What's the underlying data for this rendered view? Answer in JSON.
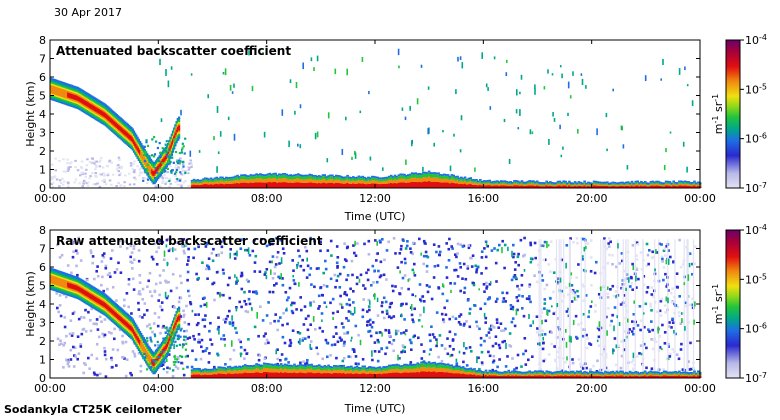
{
  "date_label": "30 Apr 2017",
  "footer_label": "Sodankyla CT25K ceilometer",
  "colors": {
    "colormap": [
      "#e3e3f3",
      "#b8b8e8",
      "#2a2acf",
      "#1e6ee6",
      "#00a88a",
      "#22c43b",
      "#8fd81a",
      "#f0e010",
      "#f08a10",
      "#e01010",
      "#a8003a",
      "#6a006a"
    ]
  },
  "chart_data": [
    {
      "type": "heatmap",
      "title": "Attenuated backscatter coefficient",
      "xlabel": "Time (UTC)",
      "ylabel": "Height (km)",
      "x_ticks": [
        "00:00",
        "04:00",
        "08:00",
        "12:00",
        "16:00",
        "20:00",
        "00:00"
      ],
      "y_ticks": [
        "0",
        "1",
        "2",
        "3",
        "4",
        "5",
        "6",
        "7",
        "8"
      ],
      "xlim_hours": [
        0,
        24
      ],
      "ylim_km": [
        0,
        8
      ],
      "colorbar": {
        "scale": "log",
        "range": [
          1e-07,
          0.0001
        ],
        "tick_labels": [
          "10^-7",
          "10^-6",
          "10^-5",
          "10^-4"
        ],
        "unit": "m^-1 sr^-1"
      },
      "features": {
        "descending_layer": [
          {
            "t": 0.0,
            "z": 5.3
          },
          {
            "t": 1.0,
            "z": 4.8
          },
          {
            "t": 2.0,
            "z": 3.9
          },
          {
            "t": 3.0,
            "z": 2.6
          },
          {
            "t": 3.6,
            "z": 1.1
          },
          {
            "t": 3.8,
            "z": 0.7
          },
          {
            "t": 4.3,
            "z": 1.7
          },
          {
            "t": 4.7,
            "z": 3.2
          }
        ],
        "boundary_layer_top_km": [
          {
            "t": 5.5,
            "z": 0.4
          },
          {
            "t": 8.0,
            "z": 0.7
          },
          {
            "t": 12.0,
            "z": 0.5
          },
          {
            "t": 14.0,
            "z": 0.8
          },
          {
            "t": 16.0,
            "z": 0.3
          },
          {
            "t": 20.0,
            "z": 0.25
          },
          {
            "t": 24.0,
            "z": 0.25
          }
        ],
        "sparse_clouds": true
      }
    },
    {
      "type": "heatmap",
      "title": "Raw attenuated backscatter coefficient",
      "xlabel": "Time (UTC)",
      "ylabel": "Height (km)",
      "x_ticks": [
        "00:00",
        "04:00",
        "08:00",
        "12:00",
        "16:00",
        "20:00",
        "00:00"
      ],
      "y_ticks": [
        "0",
        "1",
        "2",
        "3",
        "4",
        "5",
        "6",
        "7",
        "8"
      ],
      "xlim_hours": [
        0,
        24
      ],
      "ylim_km": [
        0,
        8
      ],
      "colorbar": {
        "scale": "log",
        "range": [
          1e-07,
          0.0001
        ],
        "tick_labels": [
          "10^-7",
          "10^-6",
          "10^-5",
          "10^-4"
        ],
        "unit": "m^-1 sr^-1"
      },
      "features": {
        "descending_layer": [
          {
            "t": 0.0,
            "z": 5.3
          },
          {
            "t": 1.0,
            "z": 4.8
          },
          {
            "t": 2.0,
            "z": 3.9
          },
          {
            "t": 3.0,
            "z": 2.6
          },
          {
            "t": 3.6,
            "z": 1.1
          },
          {
            "t": 3.8,
            "z": 0.7
          },
          {
            "t": 4.3,
            "z": 1.7
          },
          {
            "t": 4.7,
            "z": 3.2
          }
        ],
        "boundary_layer_top_km": [
          {
            "t": 5.5,
            "z": 0.4
          },
          {
            "t": 8.0,
            "z": 0.7
          },
          {
            "t": 12.0,
            "z": 0.5
          },
          {
            "t": 14.0,
            "z": 0.8
          },
          {
            "t": 16.0,
            "z": 0.3
          },
          {
            "t": 20.0,
            "z": 0.25
          },
          {
            "t": 24.0,
            "z": 0.25
          }
        ],
        "noise_max_height_km": 7.5
      }
    }
  ]
}
